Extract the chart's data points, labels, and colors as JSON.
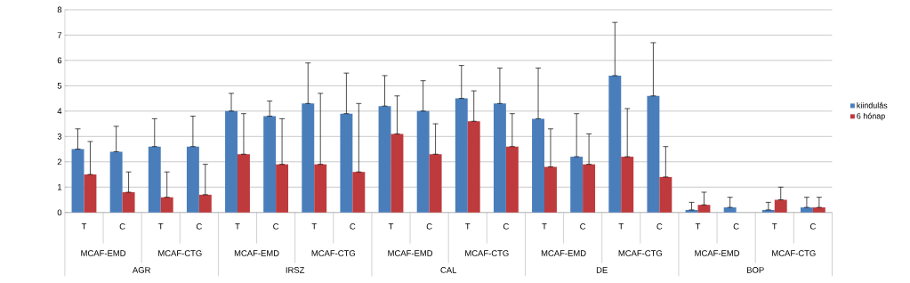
{
  "chart_data": {
    "type": "bar",
    "categories": [
      "T",
      "C",
      "T",
      "C",
      "T",
      "C",
      "T",
      "C",
      "T",
      "C",
      "T",
      "C",
      "T",
      "C",
      "T",
      "C",
      "T",
      "C",
      "T",
      "C"
    ],
    "series": [
      {
        "name": "kiindulás",
        "color": "#4a7ebb",
        "values": [
          2.5,
          2.4,
          2.6,
          2.6,
          4.0,
          3.8,
          4.3,
          3.9,
          4.2,
          4.0,
          4.5,
          4.3,
          3.7,
          2.2,
          5.4,
          4.6,
          0.1,
          0.2,
          0.1,
          0.2
        ],
        "errors": [
          [
            2.5,
            3.3
          ],
          [
            2.4,
            3.4
          ],
          [
            2.6,
            3.7
          ],
          [
            2.6,
            3.8
          ],
          [
            4.0,
            4.7
          ],
          [
            3.8,
            4.4
          ],
          [
            4.3,
            5.9
          ],
          [
            3.9,
            5.5
          ],
          [
            4.2,
            5.4
          ],
          [
            4.0,
            5.2
          ],
          [
            4.5,
            5.8
          ],
          [
            4.3,
            5.7
          ],
          [
            3.7,
            5.7
          ],
          [
            2.2,
            3.9
          ],
          [
            5.4,
            7.5
          ],
          [
            4.6,
            6.7
          ],
          [
            0.1,
            0.4
          ],
          [
            0.2,
            0.6
          ],
          [
            0.1,
            0.4
          ],
          [
            0.2,
            0.6
          ]
        ]
      },
      {
        "name": "6 hónap",
        "color": "#be3a3c",
        "values": [
          1.5,
          0.8,
          0.6,
          0.7,
          2.3,
          1.9,
          1.9,
          1.6,
          3.1,
          2.3,
          3.6,
          2.6,
          1.8,
          1.9,
          2.2,
          1.4,
          0.3,
          null,
          0.5,
          0.2
        ],
        "errors": [
          [
            1.5,
            2.8
          ],
          [
            0.8,
            1.6
          ],
          [
            0.6,
            1.6
          ],
          [
            0.7,
            1.9
          ],
          [
            2.3,
            3.9
          ],
          [
            1.9,
            3.7
          ],
          [
            1.9,
            4.7
          ],
          [
            1.6,
            4.3
          ],
          [
            3.1,
            4.6
          ],
          [
            2.3,
            3.5
          ],
          [
            3.6,
            4.8
          ],
          [
            2.6,
            3.9
          ],
          [
            1.8,
            3.3
          ],
          [
            1.9,
            3.1
          ],
          [
            2.2,
            4.1
          ],
          [
            1.4,
            2.6
          ],
          [
            0.3,
            0.8
          ],
          null,
          [
            0.5,
            1.0
          ],
          [
            0.2,
            0.6
          ]
        ]
      }
    ],
    "annotations": [
      "MCAF-EMD",
      "MCAF-CTG",
      "MCAF-EMD",
      "MCAF-CTG",
      "MCAF-EMD",
      "MCAF-CTG",
      "MCAF-EMD",
      "MCAF-CTG",
      "MCAF-EMD",
      "MCAF-CTG",
      "AGR",
      "IRSZ",
      "CAL",
      "DE",
      "BOP"
    ],
    "ylim": [
      0,
      8
    ],
    "yticks": [
      0,
      1,
      2,
      3,
      4,
      5,
      6,
      7,
      8
    ],
    "grid": "y",
    "legend": "right"
  }
}
